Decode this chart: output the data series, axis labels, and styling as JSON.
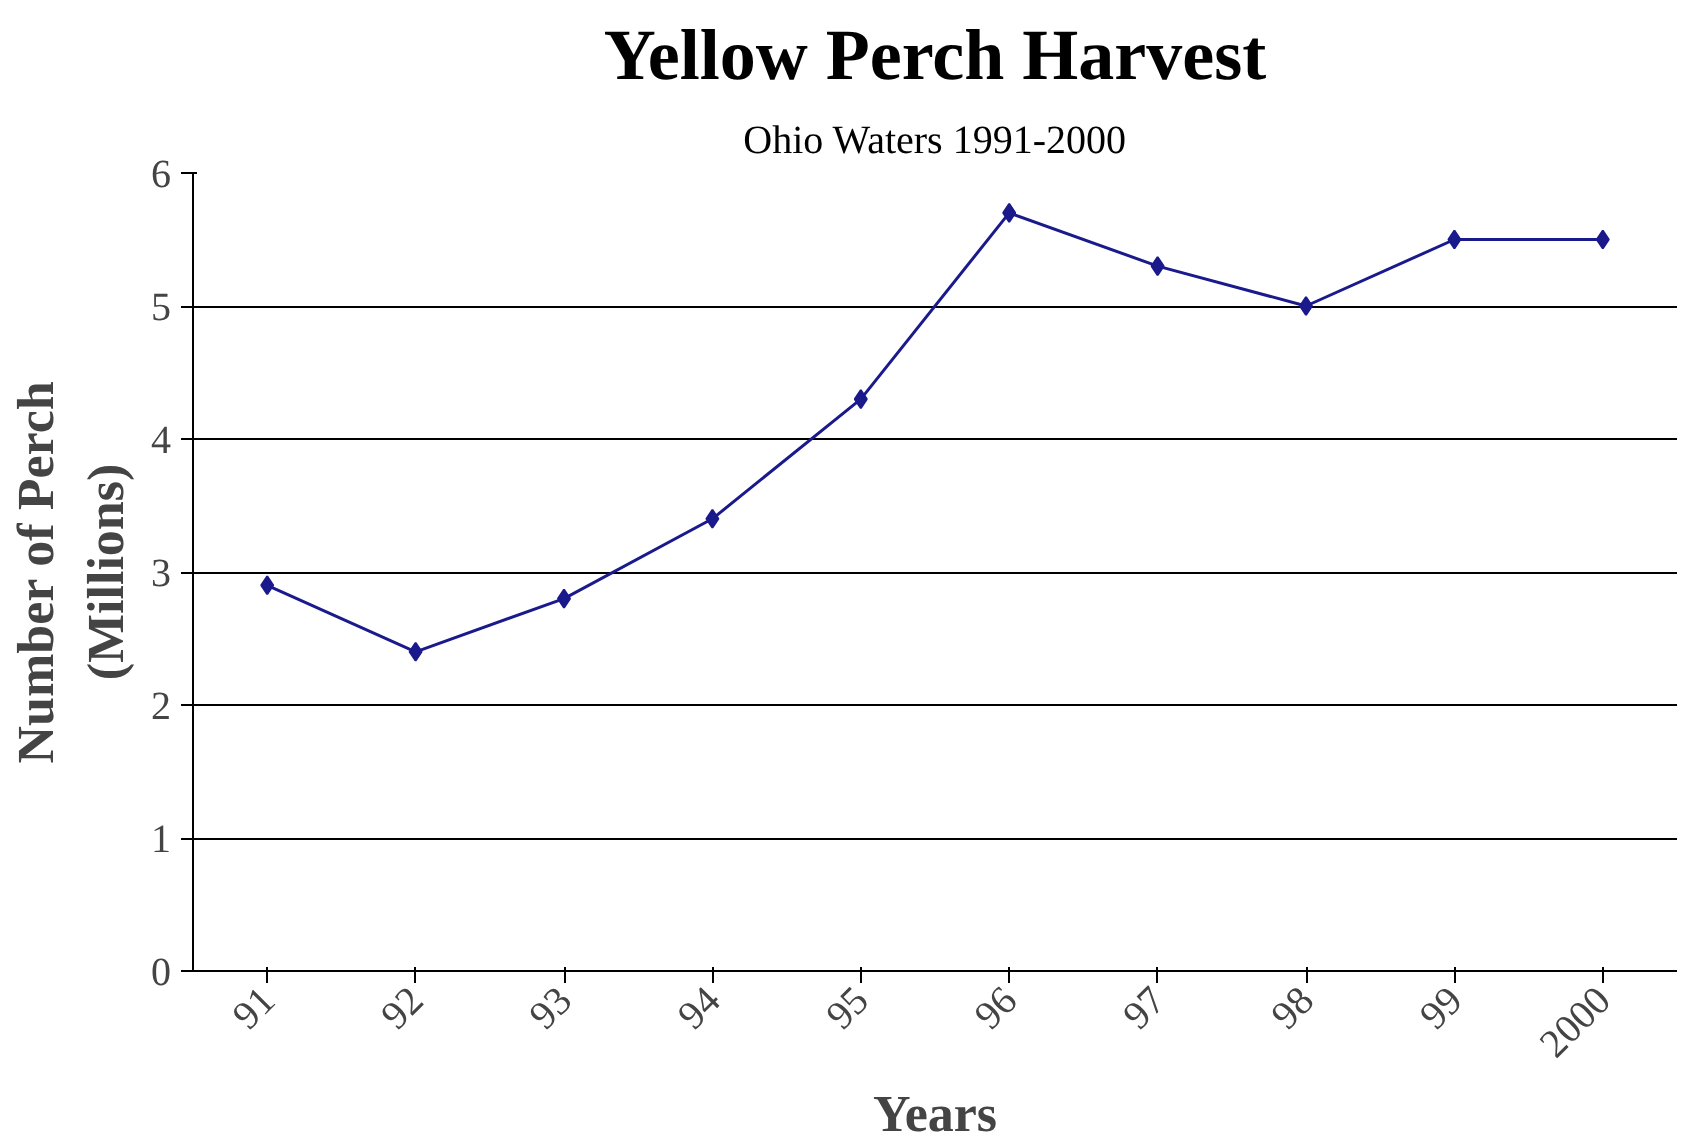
{
  "chart_data": {
    "type": "line",
    "title": "Yellow Perch Harvest",
    "subtitle": "Ohio Waters 1991-2000",
    "xlabel": "Years",
    "ylabel": "Number of Perch\n(Millions)",
    "categories": [
      "91",
      "92",
      "93",
      "94",
      "95",
      "96",
      "97",
      "98",
      "99",
      "2000"
    ],
    "series": [
      {
        "color": "#1a1a8c",
        "values": [
          2.9,
          2.4,
          2.8,
          3.4,
          4.3,
          5.7,
          5.3,
          5.0,
          5.5,
          5.5
        ]
      }
    ],
    "ylim": [
      0,
      6
    ],
    "yticks": [
      0,
      1,
      2,
      3,
      4,
      5,
      6
    ],
    "grid": "y",
    "marker": "diamond"
  }
}
